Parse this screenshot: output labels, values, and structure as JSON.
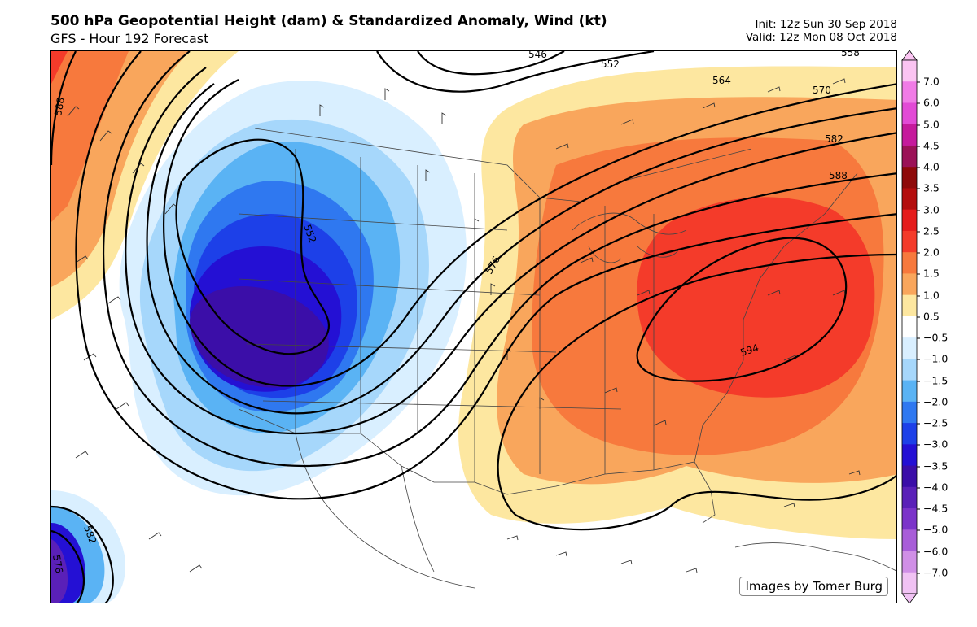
{
  "header": {
    "title": "500 hPa Geopotential Height (dam) & Standardized Anomaly,  Wind (kt)",
    "subtitle": "GFS - Hour 192 Forecast",
    "init": "Init: 12z Sun 30 Sep 2018",
    "valid": "Valid: 12z Mon 08 Oct 2018"
  },
  "map": {
    "credit": "Images by Tomer Burg",
    "contour_labels": [
      "546",
      "552",
      "552",
      "558",
      "564",
      "570",
      "576",
      "582",
      "588",
      "588",
      "594",
      "582",
      "576"
    ]
  },
  "colorbar": {
    "ticks": [
      "7.0",
      "6.0",
      "5.0",
      "4.5",
      "4.0",
      "3.5",
      "3.0",
      "2.5",
      "2.0",
      "1.5",
      "1.0",
      "0.5",
      "−0.5",
      "−1.0",
      "−1.5",
      "−2.0",
      "−2.5",
      "−3.0",
      "−3.5",
      "−4.0",
      "−4.5",
      "−5.0",
      "−6.0",
      "−7.0"
    ],
    "colors": [
      "#fbc4f2",
      "#f07be6",
      "#e24ad6",
      "#c51a9c",
      "#9b1257",
      "#8e0a0a",
      "#b30d0d",
      "#e51c1c",
      "#f43b2a",
      "#f7793d",
      "#f9a65c",
      "#fde7a0",
      "#ffffff",
      "#d9efff",
      "#a6d7fb",
      "#5ab3f4",
      "#2f78f0",
      "#1d40e8",
      "#2410d4",
      "#3b0ea8",
      "#5a20b8",
      "#7b33c9",
      "#a85dd8",
      "#d08fe6",
      "#f0c2f3"
    ]
  }
}
